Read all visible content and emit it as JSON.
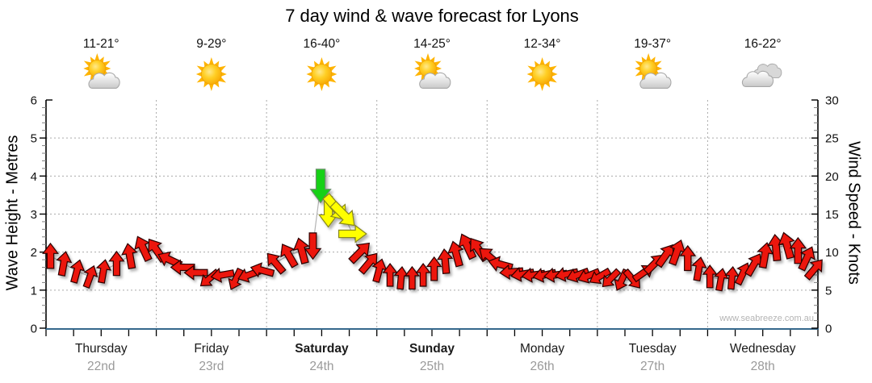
{
  "title": "7 day wind & wave forecast for Lyons",
  "watermark": "www.seabreeze.com.au",
  "days": [
    {
      "name": "Thursday",
      "date": "22nd",
      "bold": false,
      "temp": "11-21°",
      "icon": "sun-cloud"
    },
    {
      "name": "Friday",
      "date": "23rd",
      "bold": false,
      "temp": "9-29°",
      "icon": "sun"
    },
    {
      "name": "Saturday",
      "date": "24th",
      "bold": true,
      "temp": "16-40°",
      "icon": "sun"
    },
    {
      "name": "Sunday",
      "date": "25th",
      "bold": true,
      "temp": "14-25°",
      "icon": "sun-cloud"
    },
    {
      "name": "Monday",
      "date": "26th",
      "bold": false,
      "temp": "12-34°",
      "icon": "sun"
    },
    {
      "name": "Tuesday",
      "date": "27th",
      "bold": false,
      "temp": "19-37°",
      "icon": "sun-cloud"
    },
    {
      "name": "Wednesday",
      "date": "28th",
      "bold": false,
      "temp": "16-22°",
      "icon": "clouds"
    }
  ],
  "left_axis": {
    "label": "Wave Height - Metres",
    "min": 0,
    "max": 6,
    "ticks": [
      0,
      1,
      2,
      3,
      4,
      5,
      6
    ],
    "minor_step": 0.2
  },
  "right_axis": {
    "label": "Wind Speed - Knots",
    "min": 0,
    "max": 30,
    "ticks": [
      0,
      5,
      10,
      15,
      20,
      25,
      30
    ],
    "minor_step": 1
  },
  "chart_data": {
    "type": "line",
    "subtype": "wind-direction-arrow-timeseries",
    "title": "7 day wind & wave forecast for Lyons",
    "x_range_days": [
      0,
      7
    ],
    "x_day_labels": [
      "Thursday 22nd",
      "Friday 23rd",
      "Saturday 24th",
      "Sunday 25th",
      "Monday 26th",
      "Tuesday 27th",
      "Wednesday 28th"
    ],
    "grid": "dotted, vertical at day boundaries, horizontal at 1-5 m",
    "x_minor_tick_hours": 6,
    "ylabel_left": "Wave Height - Metres",
    "ylabel_right": "Wind Speed - Knots",
    "ylim_left": [
      0,
      6
    ],
    "ylim_right": [
      0,
      30
    ],
    "legend_position": "none",
    "arrow_format": "[t_days_from_Thursday_00h, wind_speed_knots, arrow_heading_deg (0=up/N, 90=right/E, 180=down/S, 270=left/W), color_key]",
    "colors": {
      "r": {
        "label": "light wind",
        "fill": "#ec1207",
        "stroke": "#2b0000"
      },
      "y": {
        "label": "moderate wind",
        "fill": "#ffff00",
        "stroke": "#87871e"
      },
      "g": {
        "label": "fresh wind",
        "fill": "#17d117",
        "stroke": "#6b8f6b"
      }
    },
    "style": {
      "connector": "#b3b3b3",
      "x_axis_line": "#35688c",
      "axis_line": "#000000",
      "grid_color": "#aaaaaa"
    },
    "arrows": [
      [
        0.04,
        9.5,
        0,
        "r"
      ],
      [
        0.16,
        8.5,
        10,
        "r"
      ],
      [
        0.28,
        7.5,
        15,
        "r"
      ],
      [
        0.4,
        6.8,
        20,
        "r"
      ],
      [
        0.52,
        7.5,
        10,
        "r"
      ],
      [
        0.64,
        8.5,
        0,
        "r"
      ],
      [
        0.76,
        9.5,
        350,
        "r"
      ],
      [
        0.88,
        10.5,
        335,
        "r"
      ],
      [
        1.0,
        10.3,
        325,
        "r"
      ],
      [
        1.12,
        9.0,
        295,
        "r"
      ],
      [
        1.24,
        8.0,
        270,
        "r"
      ],
      [
        1.36,
        7.3,
        270,
        "r"
      ],
      [
        1.48,
        6.5,
        230,
        "r"
      ],
      [
        1.6,
        7.0,
        260,
        "r"
      ],
      [
        1.72,
        6.4,
        205,
        "r"
      ],
      [
        1.84,
        7.0,
        250,
        "r"
      ],
      [
        1.96,
        7.6,
        285,
        "r"
      ],
      [
        2.08,
        8.6,
        320,
        "r"
      ],
      [
        2.2,
        9.6,
        330,
        "r"
      ],
      [
        2.32,
        10.2,
        345,
        "r"
      ],
      [
        2.42,
        10.8,
        180,
        "r"
      ],
      [
        2.49,
        18.7,
        180,
        "g"
      ],
      [
        2.56,
        15.3,
        180,
        "y"
      ],
      [
        2.63,
        15.8,
        140,
        "y"
      ],
      [
        2.7,
        14.9,
        135,
        "y"
      ],
      [
        2.78,
        12.4,
        90,
        "y"
      ],
      [
        2.85,
        10.0,
        45,
        "r"
      ],
      [
        2.93,
        8.6,
        40,
        "r"
      ],
      [
        3.02,
        7.6,
        15,
        "r"
      ],
      [
        3.12,
        7.0,
        0,
        "r"
      ],
      [
        3.22,
        6.6,
        5,
        "r"
      ],
      [
        3.32,
        6.6,
        0,
        "r"
      ],
      [
        3.42,
        7.0,
        0,
        "r"
      ],
      [
        3.52,
        7.8,
        0,
        "r"
      ],
      [
        3.62,
        8.8,
        355,
        "r"
      ],
      [
        3.72,
        9.8,
        345,
        "r"
      ],
      [
        3.82,
        10.8,
        335,
        "r"
      ],
      [
        3.92,
        10.4,
        325,
        "r"
      ],
      [
        4.02,
        9.4,
        310,
        "r"
      ],
      [
        4.12,
        8.4,
        285,
        "r"
      ],
      [
        4.22,
        7.4,
        265,
        "r"
      ],
      [
        4.32,
        7.1,
        260,
        "r"
      ],
      [
        4.42,
        7.0,
        262,
        "r"
      ],
      [
        4.52,
        7.0,
        258,
        "r"
      ],
      [
        4.62,
        7.0,
        262,
        "r"
      ],
      [
        4.72,
        7.1,
        258,
        "r"
      ],
      [
        4.82,
        7.0,
        250,
        "r"
      ],
      [
        4.92,
        6.9,
        248,
        "r"
      ],
      [
        5.02,
        6.8,
        240,
        "r"
      ],
      [
        5.12,
        6.5,
        225,
        "r"
      ],
      [
        5.22,
        6.3,
        205,
        "r"
      ],
      [
        5.32,
        6.4,
        140,
        "r"
      ],
      [
        5.42,
        7.3,
        55,
        "r"
      ],
      [
        5.52,
        8.5,
        45,
        "r"
      ],
      [
        5.62,
        9.6,
        35,
        "r"
      ],
      [
        5.72,
        10.0,
        20,
        "r"
      ],
      [
        5.82,
        9.2,
        0,
        "r"
      ],
      [
        5.92,
        7.8,
        10,
        "r"
      ],
      [
        6.02,
        6.8,
        0,
        "r"
      ],
      [
        6.12,
        6.4,
        10,
        "r"
      ],
      [
        6.22,
        6.6,
        5,
        "r"
      ],
      [
        6.32,
        7.2,
        25,
        "r"
      ],
      [
        6.42,
        8.4,
        30,
        "r"
      ],
      [
        6.52,
        9.6,
        10,
        "r"
      ],
      [
        6.62,
        10.6,
        355,
        "r"
      ],
      [
        6.72,
        10.9,
        345,
        "r"
      ],
      [
        6.82,
        10.2,
        0,
        "r"
      ],
      [
        6.9,
        9.2,
        25,
        "r"
      ],
      [
        6.97,
        7.8,
        40,
        "r"
      ]
    ]
  }
}
